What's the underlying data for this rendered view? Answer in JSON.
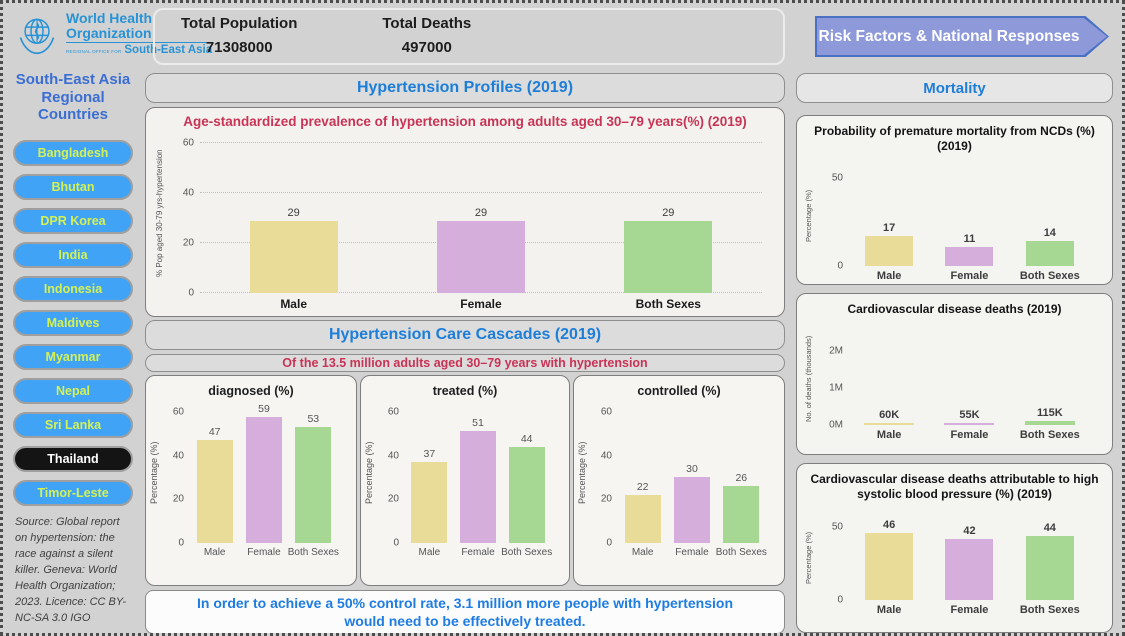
{
  "header": {
    "logo": {
      "line1": "World Health",
      "line2": "Organization",
      "office": "REGIONAL OFFICE FOR",
      "region": "South-East Asia"
    },
    "total_population_label": "Total Population",
    "total_population_value": "71308000",
    "total_deaths_label": "Total Deaths",
    "total_deaths_value": "497000",
    "nav_button_label": "Risk Factors & National Responses"
  },
  "sidebar": {
    "title": "South-East Asia Regional Countries",
    "countries": [
      "Bangladesh",
      "Bhutan",
      "DPR Korea",
      "India",
      "Indonesia",
      "Maldives",
      "Myanmar",
      "Nepal",
      "Sri Lanka",
      "Thailand",
      "Timor-Leste"
    ],
    "selected": "Thailand",
    "source": "Source: Global report on hypertension: the race against a silent killer. Geneva: World Health Organization; 2023. Licence: CC BY-NC-SA 3.0 IGO"
  },
  "sections": {
    "profiles_title": "Hypertension Profiles (2019)",
    "cascades_title": "Hypertension Care Cascades (2019)",
    "cascades_subtitle": "Of the 13.5 million adults aged 30–79 years with hypertension",
    "mortality_title": "Mortality",
    "note": "In order to achieve a 50% control rate, 3.1 million more people with hypertension would need to be effectively treated."
  },
  "bar_colors": [
    "#e9dc99",
    "#d6aedb",
    "#a6d894"
  ],
  "chart_data": [
    {
      "id": "prevalence",
      "type": "bar",
      "title": "Age-standardized prevalence of hypertension among adults aged 30–79 years(%) (2019)",
      "categories": [
        "Male",
        "Female",
        "Both Sexes"
      ],
      "values": [
        29,
        29,
        29
      ],
      "ylabel": "% Pop aged 30-79 yrs-hypertension",
      "ylim": [
        0,
        64
      ],
      "yticks": [
        0,
        20,
        40,
        60
      ],
      "grid": true,
      "bold": false
    },
    {
      "id": "diagnosed",
      "type": "bar",
      "title": "diagnosed (%)",
      "categories": [
        "Male",
        "Female",
        "Both Sexes"
      ],
      "values": [
        47,
        59,
        53
      ],
      "ylabel": "Percentage (%)",
      "ylim": [
        0,
        64
      ],
      "yticks": [
        0,
        20,
        40,
        60
      ],
      "grid": false,
      "bold": false
    },
    {
      "id": "treated",
      "type": "bar",
      "title": "treated (%)",
      "categories": [
        "Male",
        "Female",
        "Both Sexes"
      ],
      "values": [
        37,
        51,
        44
      ],
      "ylabel": "Percentage (%)",
      "ylim": [
        0,
        64
      ],
      "yticks": [
        0,
        20,
        40,
        60
      ],
      "grid": false,
      "bold": false
    },
    {
      "id": "controlled",
      "type": "bar",
      "title": "controlled (%)",
      "categories": [
        "Male",
        "Female",
        "Both Sexes"
      ],
      "values": [
        22,
        30,
        26
      ],
      "ylabel": "Percentage (%)",
      "ylim": [
        0,
        64
      ],
      "yticks": [
        0,
        20,
        40,
        60
      ],
      "grid": false,
      "bold": false
    },
    {
      "id": "ncd",
      "type": "bar",
      "title": "Probability of premature mortality from NCDs (%) (2019)",
      "categories": [
        "Male",
        "Female",
        "Both Sexes"
      ],
      "values": [
        17,
        11,
        14
      ],
      "ylabel": "Percentage (%)",
      "ylim": [
        0,
        57
      ],
      "yticks": [
        0,
        50
      ],
      "grid": false,
      "bold": true
    },
    {
      "id": "cvd",
      "type": "bar",
      "title": "Cardiovascular disease deaths (2019)",
      "categories": [
        "Male",
        "Female",
        "Both Sexes"
      ],
      "values": [
        60,
        55,
        115
      ],
      "value_labels": [
        "60K",
        "55K",
        "115K"
      ],
      "ylabel": "No. of deaths (thousands)",
      "ylim": [
        0,
        2500
      ],
      "yticks": [
        0,
        1000,
        2000
      ],
      "ytick_labels": [
        "0M",
        "1M",
        "2M"
      ],
      "grid": false,
      "bold": true
    },
    {
      "id": "sbp",
      "type": "bar",
      "title": "Cardiovascular disease deaths attributable to high systolic blood pressure (%) (2019)",
      "categories": [
        "Male",
        "Female",
        "Both Sexes"
      ],
      "values": [
        46,
        42,
        44
      ],
      "ylabel": "Percentage (%)",
      "ylim": [
        0,
        57.5
      ],
      "yticks": [
        0,
        50
      ],
      "grid": false,
      "bold": true
    }
  ]
}
